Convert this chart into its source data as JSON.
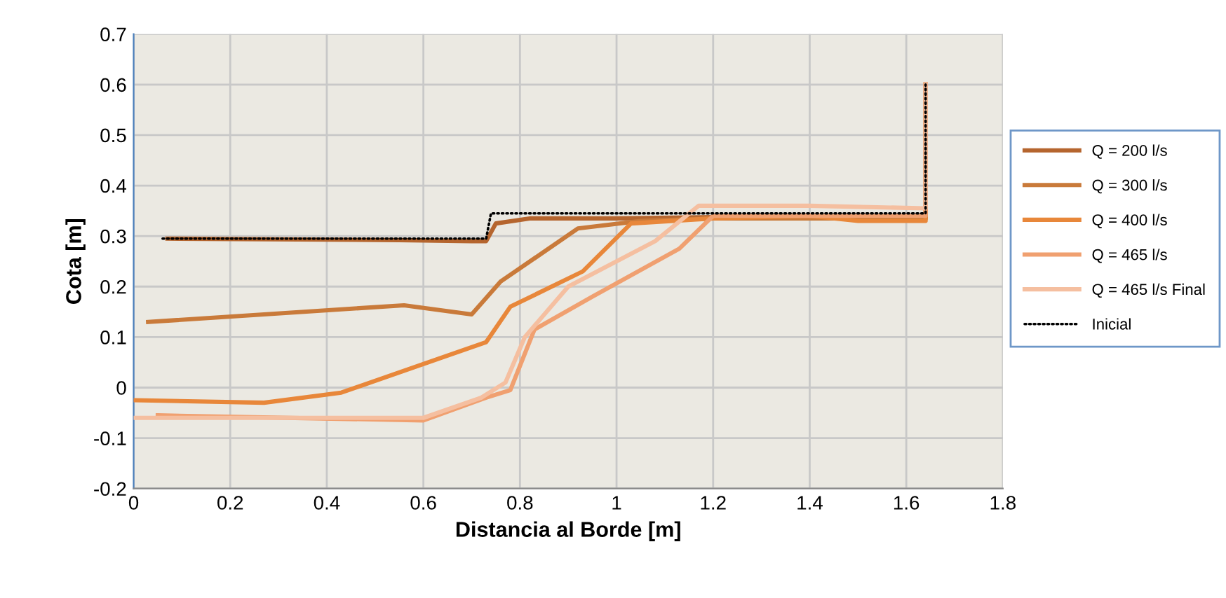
{
  "chart_data": {
    "type": "line",
    "xlabel": "Distancia al Borde [m]",
    "ylabel": "Cota [m]",
    "xlim": [
      0,
      1.8
    ],
    "xticks": [
      0,
      0.2,
      0.4,
      0.6,
      0.8,
      1,
      1.2,
      1.4,
      1.6,
      1.8
    ],
    "ylim": [
      -0.2,
      0.7
    ],
    "yticks": [
      -0.2,
      -0.1,
      0,
      0.1,
      0.2,
      0.3,
      0.4,
      0.5,
      0.6,
      0.7
    ],
    "grid": true,
    "legend": "right",
    "marker": "none",
    "series": [
      {
        "name": "Q = 200 l/s",
        "color": "#b5652e",
        "line_style": "solid",
        "x": [
          0.07,
          0.55,
          0.7,
          0.73,
          0.75,
          0.82,
          1.0,
          1.4,
          1.64,
          1.64
        ],
        "values": [
          0.295,
          0.292,
          0.29,
          0.29,
          0.325,
          0.335,
          0.335,
          0.34,
          0.335,
          0.6
        ]
      },
      {
        "name": "Q = 300 l/s",
        "color": "#c97a3a",
        "line_style": "solid",
        "x": [
          0.03,
          0.56,
          0.7,
          0.76,
          0.92,
          1.05,
          1.2,
          1.64,
          1.64
        ],
        "values": [
          0.13,
          0.163,
          0.145,
          0.21,
          0.315,
          0.33,
          0.335,
          0.335,
          0.6
        ]
      },
      {
        "name": "Q = 400 l/s",
        "color": "#e8873a",
        "line_style": "solid",
        "x": [
          0,
          0.27,
          0.43,
          0.73,
          0.78,
          0.93,
          1.03,
          1.2,
          1.4,
          1.5,
          1.64,
          1.64
        ],
        "values": [
          -0.025,
          -0.03,
          -0.01,
          0.09,
          0.16,
          0.23,
          0.325,
          0.335,
          0.34,
          0.33,
          0.33,
          0.6
        ]
      },
      {
        "name": "Q = 465 l/s",
        "color": "#f0a070",
        "line_style": "solid",
        "x": [
          0.05,
          0.6,
          0.73,
          0.78,
          0.83,
          0.95,
          1.13,
          1.2,
          1.64,
          1.64
        ],
        "values": [
          -0.055,
          -0.065,
          -0.02,
          -0.005,
          0.115,
          0.18,
          0.275,
          0.34,
          0.34,
          0.6
        ]
      },
      {
        "name": "Q = 465 l/s Final",
        "color": "#f5bfa0",
        "line_style": "solid",
        "x": [
          0,
          0.6,
          0.72,
          0.77,
          0.81,
          0.9,
          1.08,
          1.17,
          1.4,
          1.64,
          1.64
        ],
        "values": [
          -0.06,
          -0.06,
          -0.02,
          0.01,
          0.1,
          0.2,
          0.29,
          0.36,
          0.36,
          0.355,
          0.6
        ]
      },
      {
        "name": "Inicial",
        "color": "#000000",
        "line_style": "dotted",
        "x": [
          0.06,
          0.73,
          0.74,
          1.64,
          1.64
        ],
        "values": [
          0.295,
          0.295,
          0.345,
          0.345,
          0.6
        ]
      }
    ]
  }
}
